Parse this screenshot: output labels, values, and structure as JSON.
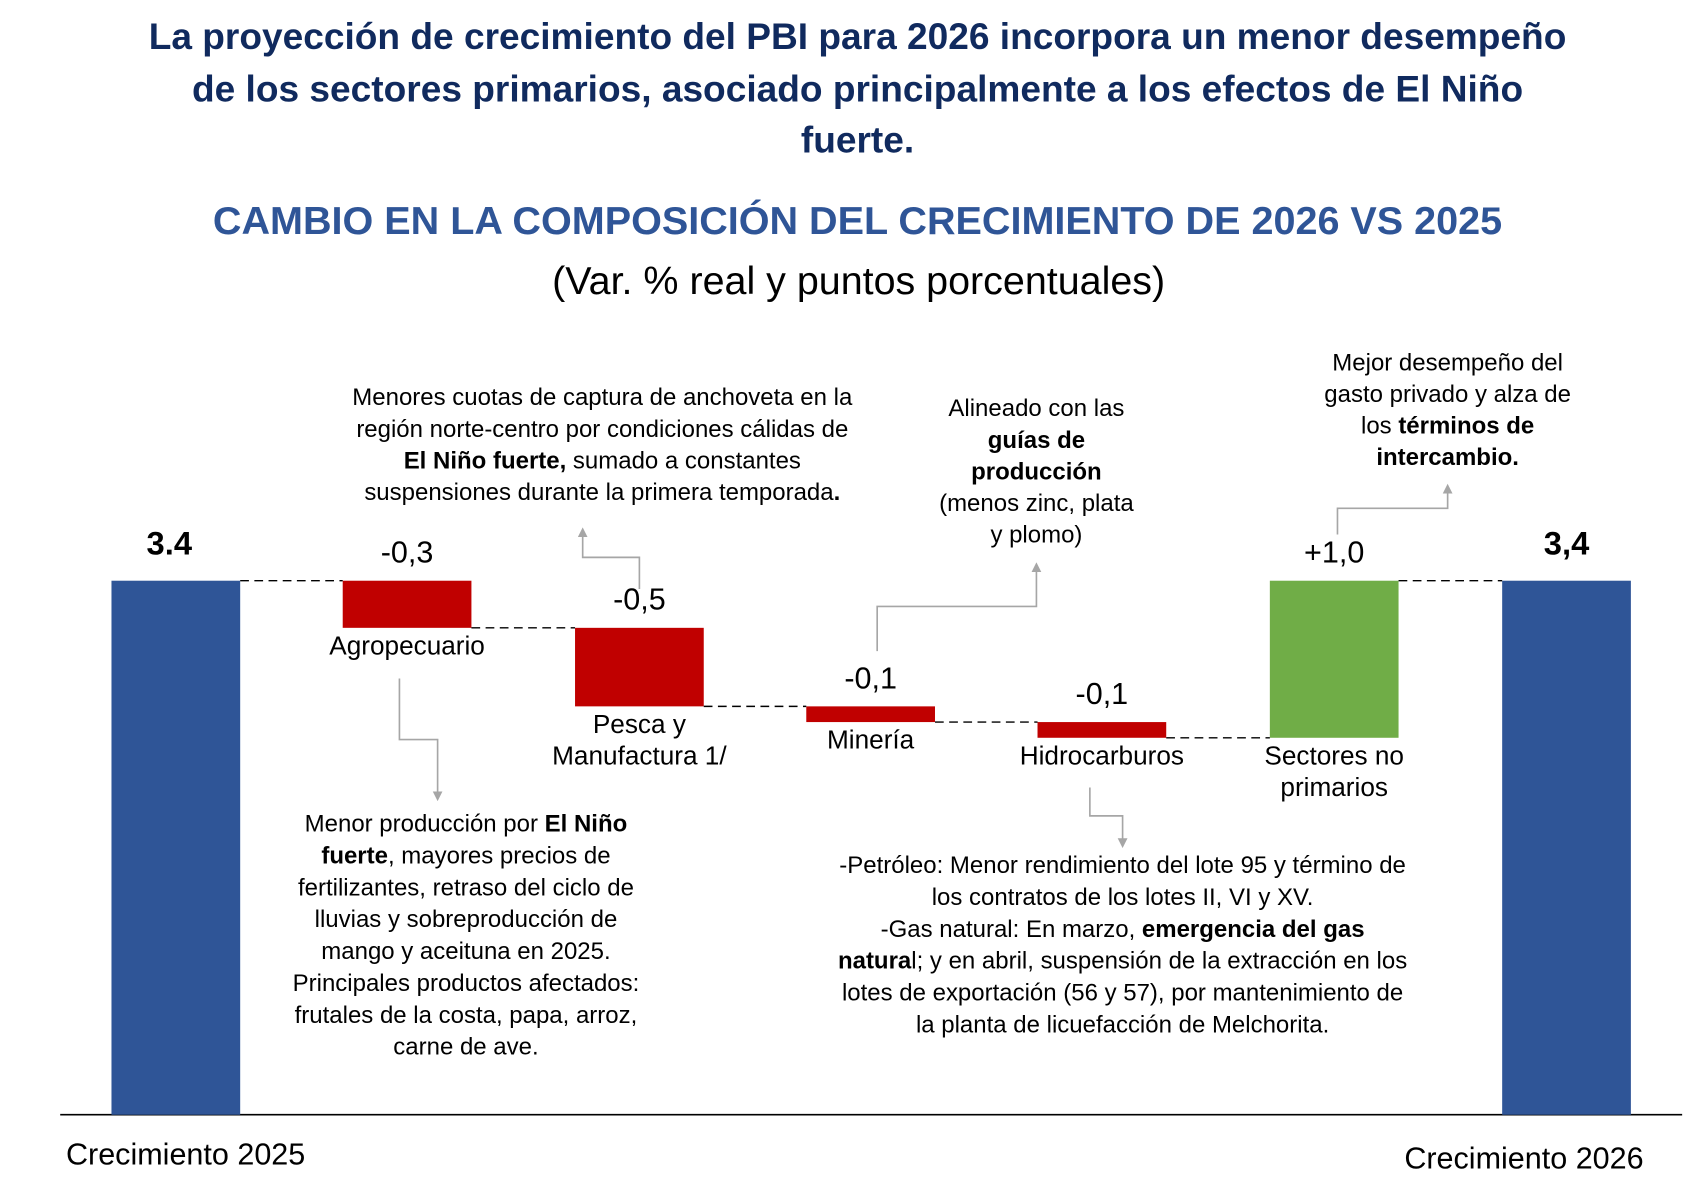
{
  "title_lines": [
    "La proyección de crecimiento del PBI para 2026 incorpora un menor desempeño",
    "de los sectores primarios, asociado principalmente a los efectos de El Niño",
    "fuerte."
  ],
  "chart_data": {
    "type": "waterfall",
    "title": "CAMBIO EN LA COMPOSICIÓN DEL CRECIMIENTO DE 2026 VS 2025",
    "subtitle": "(Var. % real y puntos porcentuales)",
    "categories": [
      [
        "Crecimiento 2025"
      ],
      [
        "Agropecuario"
      ],
      [
        "Pesca y",
        "Manufactura 1/"
      ],
      [
        "Minería"
      ],
      [
        "Hidrocarburos"
      ],
      [
        "Sectores no",
        "primarios"
      ],
      [
        "Crecimiento 2026"
      ]
    ],
    "values": [
      3.4,
      -0.3,
      -0.5,
      -0.1,
      -0.1,
      1.0,
      3.4
    ],
    "value_labels": [
      "3.4",
      "-0,3",
      "-0,5",
      "-0,1",
      "-0,1",
      "+1,0",
      "3,4"
    ],
    "colors": {
      "total": "#2f5597",
      "decrease": "#c00000",
      "increase": "#70ad47"
    },
    "annotations": [
      {
        "lines": [
          [
            "Menores cuotas de captura de anchoveta en la"
          ],
          [
            "región norte-centro por condiciones cálidas de"
          ],
          [
            {
              "bold": "El Niño fuerte,"
            },
            " sumado a constantes"
          ],
          [
            "suspensiones durante la primera temporada",
            {
              "bold": "."
            }
          ]
        ]
      },
      {
        "lines": [
          [
            "Alineado con las"
          ],
          [
            {
              "bold": "guías de"
            }
          ],
          [
            {
              "bold": "producción"
            }
          ],
          [
            "(menos zinc, plata"
          ],
          [
            "y plomo)"
          ]
        ]
      },
      {
        "lines": [
          [
            "Mejor desempeño del"
          ],
          [
            "gasto privado y alza de"
          ],
          [
            "los ",
            {
              "bold": "términos de"
            }
          ],
          [
            {
              "bold": "intercambio."
            }
          ]
        ]
      },
      {
        "lines": [
          [
            "Menor producción por ",
            {
              "bold": "El Niño"
            }
          ],
          [
            {
              "bold": "fuerte"
            },
            ", mayores precios de"
          ],
          [
            "fertilizantes, retraso del ciclo de"
          ],
          [
            "lluvias y sobreproducción de"
          ],
          [
            "mango y aceituna en 2025."
          ],
          [
            "Principales productos afectados:"
          ],
          [
            "frutales de la costa, papa, arroz,"
          ],
          [
            "carne de ave."
          ]
        ]
      },
      {
        "lines": [
          [
            "-Petróleo: Menor rendimiento del lote 95 y término de"
          ],
          [
            "los contratos de los lotes II, VI y XV."
          ],
          [
            "-Gas natural: En marzo, ",
            {
              "bold": "emergencia del gas"
            }
          ],
          [
            {
              "bold": "natura"
            },
            "l; y en abril, suspensión de la extracción en los"
          ],
          [
            "lotes de exportación (56 y 57), por mantenimiento de"
          ],
          [
            "la planta de licuefacción de Melchorita."
          ]
        ]
      }
    ]
  }
}
